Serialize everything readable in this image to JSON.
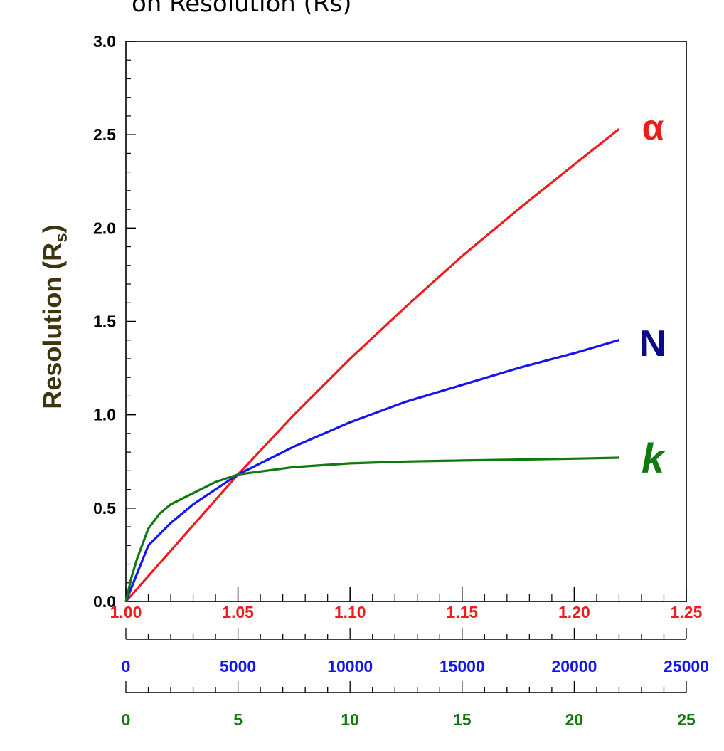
{
  "title": "on Resolution (Rs)",
  "colors": {
    "alpha": "#ee1c1c",
    "N": "#1414ee",
    "k": "#107a10",
    "ylabel": "#3d3410",
    "axis": "#000000"
  },
  "chart_data": {
    "type": "line",
    "title": "on Resolution (Rs)",
    "ylabel": "Resolution (R",
    "ylabel_sub": "s",
    "ylabel_close": ")",
    "ylim": [
      0,
      3
    ],
    "yticks": [
      "0.0",
      "0.5",
      "1.0",
      "1.5",
      "2.0",
      "2.5",
      "3.0"
    ],
    "grid": false,
    "x_axes": [
      {
        "name": "alpha",
        "range": [
          1.0,
          1.25
        ],
        "ticks": [
          "1.00",
          "1.05",
          "1.10",
          "1.15",
          "1.20",
          "1.25"
        ]
      },
      {
        "name": "N",
        "range": [
          0,
          25000
        ],
        "ticks": [
          "0",
          "5000",
          "10000",
          "15000",
          "20000",
          "25000"
        ]
      },
      {
        "name": "k",
        "range": [
          0,
          25
        ],
        "ticks": [
          "0",
          "5",
          "10",
          "15",
          "20",
          "25"
        ]
      }
    ],
    "series": [
      {
        "name": "α",
        "axis": "alpha",
        "x": [
          1.0,
          1.025,
          1.05,
          1.075,
          1.1,
          1.125,
          1.15,
          1.175,
          1.2,
          1.22
        ],
        "y": [
          0.0,
          0.34,
          0.68,
          1.0,
          1.3,
          1.58,
          1.85,
          2.1,
          2.34,
          2.53
        ]
      },
      {
        "name": "N",
        "axis": "N",
        "x": [
          0,
          1000,
          2000,
          3000,
          4000,
          5000,
          7500,
          10000,
          12500,
          15000,
          17500,
          20000,
          22000
        ],
        "y": [
          0.0,
          0.3,
          0.42,
          0.52,
          0.6,
          0.68,
          0.83,
          0.96,
          1.07,
          1.16,
          1.25,
          1.33,
          1.4
        ]
      },
      {
        "name": "k",
        "axis": "k",
        "x": [
          0,
          0.25,
          0.5,
          1,
          1.5,
          2,
          3,
          4,
          5,
          7.5,
          10,
          12.5,
          15,
          17.5,
          20,
          22
        ],
        "y": [
          0.0,
          0.13,
          0.23,
          0.39,
          0.47,
          0.52,
          0.58,
          0.64,
          0.68,
          0.72,
          0.74,
          0.75,
          0.755,
          0.76,
          0.765,
          0.77
        ]
      }
    ]
  }
}
